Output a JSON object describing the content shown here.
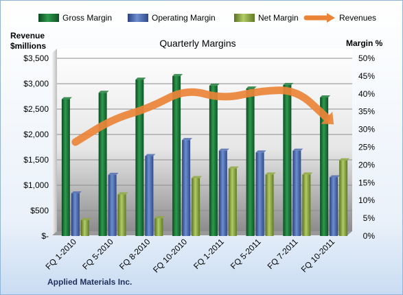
{
  "chart_data": {
    "type": "bar",
    "title": "Quarterly Margins",
    "caption": "Applied Materials Inc.",
    "categories": [
      "FQ 1-2010",
      "FQ 5-2010",
      "FQ 8-2010",
      "FQ 10-2010",
      "FQ 1-2011",
      "FQ 5-2011",
      "FQ 7-2011",
      "FQ 10-2011"
    ],
    "y_left": {
      "label_line1": "Revenue",
      "label_line2": "$millions",
      "range": [
        0,
        3500
      ],
      "tick_labels": [
        "$-",
        "$500",
        "$1,000",
        "$1,500",
        "$2,000",
        "$2,500",
        "$3,000",
        "$3,500"
      ]
    },
    "y_right": {
      "label": "Margin  %",
      "range": [
        0,
        50
      ],
      "tick_labels": [
        "0%",
        "5%",
        "10%",
        "15%",
        "20%",
        "25%",
        "30%",
        "35%",
        "40%",
        "45%",
        "50%"
      ]
    },
    "series": [
      {
        "name": "Gross Margin",
        "axis": "right",
        "color": "#1e7b3a",
        "values": [
          38.5,
          40.3,
          44.0,
          45.0,
          42.3,
          41.5,
          42.5,
          39.0
        ]
      },
      {
        "name": "Operating Margin",
        "axis": "right",
        "color": "#4f6fb3",
        "values": [
          12.0,
          17.2,
          22.5,
          27.0,
          24.0,
          23.5,
          24.0,
          16.5
        ]
      },
      {
        "name": "Net Margin",
        "axis": "right",
        "color": "#8faa3e",
        "values": [
          4.5,
          11.7,
          5.0,
          16.3,
          19.0,
          17.3,
          17.3,
          21.3
        ]
      },
      {
        "name": "Revenues",
        "axis": "left",
        "type": "line-arrow",
        "color": "#ec8438",
        "values": [
          1850,
          2300,
          2520,
          2900,
          2700,
          2860,
          2880,
          2200
        ]
      }
    ],
    "grid": "horizontal",
    "legend_position": "top"
  }
}
